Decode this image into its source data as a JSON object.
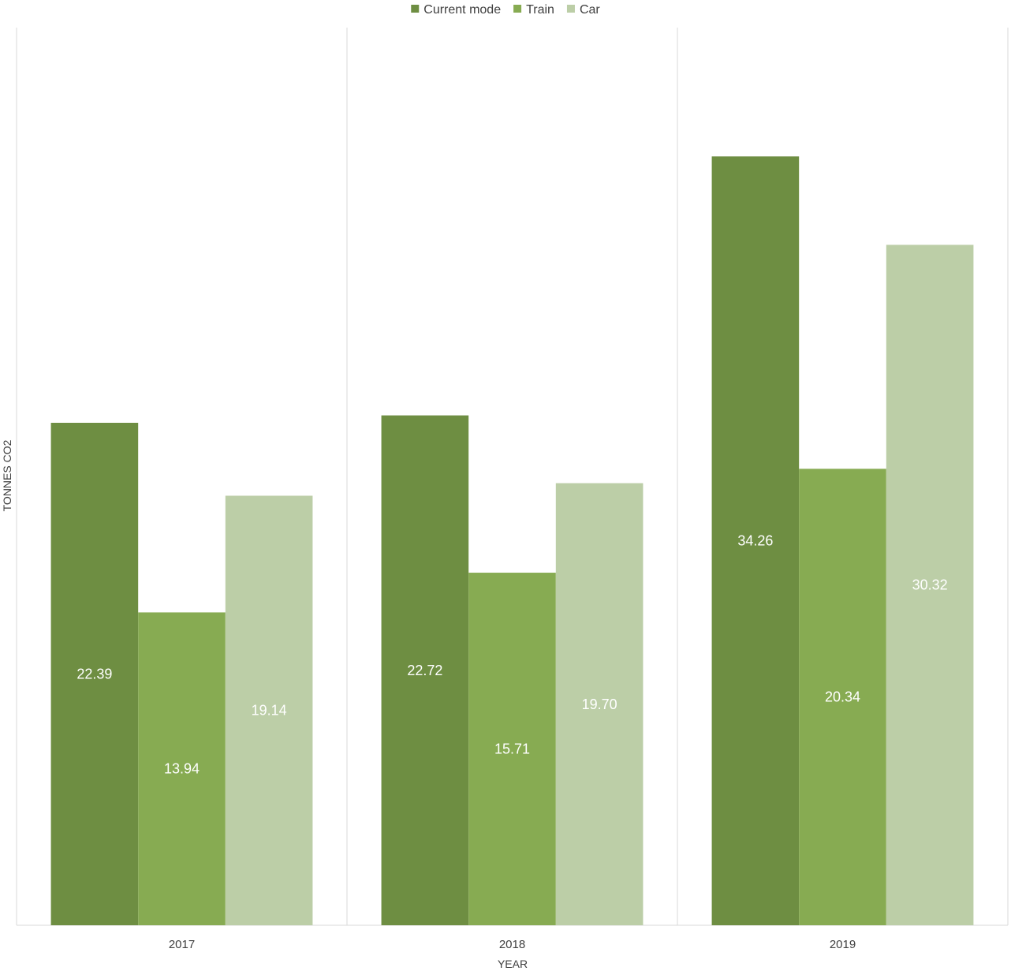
{
  "chart_data": {
    "type": "bar",
    "title": "",
    "xlabel": "YEAR",
    "ylabel": "TONNES CO2",
    "categories": [
      "2017",
      "2018",
      "2019"
    ],
    "series": [
      {
        "name": "Current mode",
        "color": "#6e8e42",
        "values": [
          22.39,
          22.72,
          34.26
        ],
        "labels": [
          "22.39",
          "22.72",
          "34.26"
        ]
      },
      {
        "name": "Train",
        "color": "#87ab52",
        "values": [
          13.94,
          15.71,
          20.34
        ],
        "labels": [
          "13.94",
          "15.71",
          "20.34"
        ]
      },
      {
        "name": "Car",
        "color": "#bccea7",
        "values": [
          19.14,
          19.7,
          30.32
        ],
        "labels": [
          "19.14",
          "19.70",
          "30.32"
        ]
      }
    ],
    "ylim": [
      0,
      40
    ],
    "grid": "vertical category separators",
    "legend_position": "top-center",
    "y_tick_labels": "hidden"
  }
}
